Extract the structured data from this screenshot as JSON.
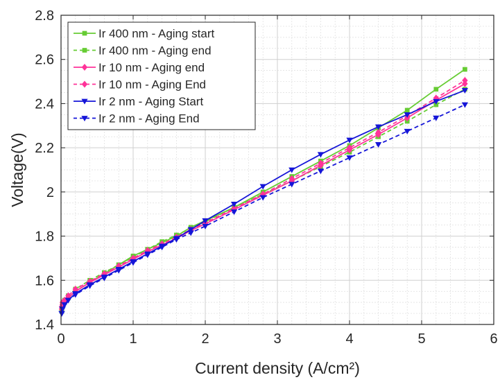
{
  "chart_data": {
    "type": "line",
    "xlabel": "Current density (A/cm²)",
    "ylabel": "Voltage(V)",
    "xlim": [
      0,
      6
    ],
    "ylim": [
      1.4,
      2.8
    ],
    "x_ticks": [
      "0",
      "1",
      "2",
      "3",
      "4",
      "5",
      "6"
    ],
    "y_ticks": [
      "1.4",
      "1.6",
      "1.8",
      "2",
      "2.2",
      "2.4",
      "2.6",
      "2.8"
    ],
    "grid": "major and minor",
    "legend_position": "top-left",
    "series": [
      {
        "name": "Ir 400 nm - Aging start",
        "color": "#66cc33",
        "line_style": "solid",
        "marker": "square",
        "x": [
          0.01,
          0.02,
          0.05,
          0.1,
          0.2,
          0.4,
          0.6,
          0.8,
          1.0,
          1.2,
          1.4,
          1.6,
          1.8,
          2.0,
          2.4,
          2.8,
          3.2,
          3.6,
          4.0,
          4.4,
          4.8,
          5.2,
          5.6
        ],
        "y": [
          1.46,
          1.48,
          1.5,
          1.52,
          1.55,
          1.59,
          1.63,
          1.67,
          1.71,
          1.74,
          1.77,
          1.8,
          1.84,
          1.87,
          1.93,
          2.0,
          2.07,
          2.14,
          2.21,
          2.29,
          2.37,
          2.465,
          2.555
        ]
      },
      {
        "name": "Ir 400 nm - Aging end",
        "color": "#66cc33",
        "line_style": "dashed",
        "marker": "square",
        "x": [
          0.01,
          0.02,
          0.05,
          0.1,
          0.2,
          0.4,
          0.6,
          0.8,
          1.0,
          1.2,
          1.4,
          1.6,
          1.8,
          2.0,
          2.4,
          2.8,
          3.2,
          3.6,
          4.0,
          4.4,
          4.8,
          5.2,
          5.6
        ],
        "y": [
          1.47,
          1.49,
          1.51,
          1.53,
          1.56,
          1.6,
          1.635,
          1.67,
          1.705,
          1.74,
          1.775,
          1.805,
          1.835,
          1.865,
          1.93,
          1.99,
          2.05,
          2.115,
          2.18,
          2.25,
          2.32,
          2.395,
          2.465
        ]
      },
      {
        "name": "Ir 10 nm - Aging end",
        "color": "#ff3399",
        "line_style": "solid",
        "marker": "diamond",
        "x": [
          0.01,
          0.02,
          0.05,
          0.1,
          0.2,
          0.4,
          0.6,
          0.8,
          1.0,
          1.2,
          1.4,
          1.6,
          1.8,
          2.0,
          2.4,
          2.8,
          3.2,
          3.6,
          4.0,
          4.4,
          4.8,
          5.2,
          5.6
        ],
        "y": [
          1.47,
          1.49,
          1.5,
          1.52,
          1.55,
          1.59,
          1.625,
          1.66,
          1.695,
          1.73,
          1.76,
          1.79,
          1.825,
          1.855,
          1.92,
          1.985,
          2.05,
          2.12,
          2.19,
          2.26,
          2.335,
          2.415,
          2.49
        ]
      },
      {
        "name": "Ir 10 nm - Aging End",
        "color": "#ff3399",
        "line_style": "dashed",
        "marker": "diamond",
        "x": [
          0.01,
          0.02,
          0.05,
          0.1,
          0.2,
          0.4,
          0.6,
          0.8,
          1.0,
          1.2,
          1.4,
          1.6,
          1.8,
          2.0,
          2.4,
          2.8,
          3.2,
          3.6,
          4.0,
          4.4,
          4.8,
          5.2,
          5.6
        ],
        "y": [
          1.48,
          1.5,
          1.51,
          1.53,
          1.56,
          1.595,
          1.63,
          1.665,
          1.7,
          1.735,
          1.765,
          1.795,
          1.83,
          1.86,
          1.925,
          1.99,
          2.06,
          2.13,
          2.2,
          2.27,
          2.345,
          2.425,
          2.505
        ]
      },
      {
        "name": "Ir 2 nm - Aging Start",
        "color": "#1515d8",
        "line_style": "solid",
        "marker": "triangle-down",
        "x": [
          0.01,
          0.02,
          0.05,
          0.1,
          0.2,
          0.4,
          0.6,
          0.8,
          1.0,
          1.2,
          1.4,
          1.6,
          1.8,
          2.0,
          2.4,
          2.8,
          3.2,
          3.6,
          4.0,
          4.4,
          4.8,
          5.2,
          5.6
        ],
        "y": [
          1.45,
          1.47,
          1.49,
          1.51,
          1.54,
          1.58,
          1.615,
          1.65,
          1.685,
          1.72,
          1.755,
          1.79,
          1.83,
          1.87,
          1.945,
          2.025,
          2.1,
          2.17,
          2.235,
          2.295,
          2.35,
          2.41,
          2.46
        ]
      },
      {
        "name": "Ir 2 nm - Aging End",
        "color": "#1515d8",
        "line_style": "dashed",
        "marker": "triangle-down",
        "x": [
          0.01,
          0.02,
          0.05,
          0.1,
          0.2,
          0.4,
          0.6,
          0.8,
          1.0,
          1.2,
          1.4,
          1.6,
          1.8,
          2.0,
          2.4,
          2.8,
          3.2,
          3.6,
          4.0,
          4.4,
          4.8,
          5.2,
          5.6
        ],
        "y": [
          1.45,
          1.47,
          1.49,
          1.51,
          1.535,
          1.575,
          1.61,
          1.645,
          1.68,
          1.715,
          1.75,
          1.785,
          1.815,
          1.845,
          1.91,
          1.975,
          2.035,
          2.095,
          2.155,
          2.215,
          2.275,
          2.335,
          2.395
        ]
      }
    ]
  }
}
